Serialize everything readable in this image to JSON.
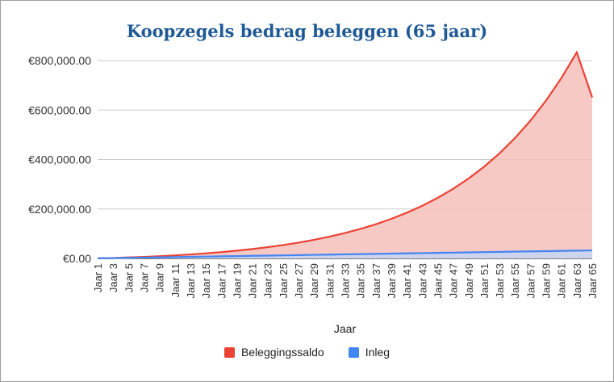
{
  "chart_data": {
    "type": "area",
    "title": "Koopzegels bedrag beleggen (65 jaar)",
    "xlabel": "Jaar",
    "ylabel": "",
    "ylim": [
      0,
      800000
    ],
    "yticks": [
      "€0.00",
      "€200,000.00",
      "€400,000.00",
      "€600,000.00",
      "€800,000.00"
    ],
    "ytick_values": [
      0,
      200000,
      400000,
      600000,
      800000
    ],
    "x_labels": [
      "Jaar 1",
      "Jaar 3",
      "Jaar 5",
      "Jaar 7",
      "Jaar 9",
      "Jaar 11",
      "Jaar 13",
      "Jaar 15",
      "Jaar 17",
      "Jaar 19",
      "Jaar 21",
      "Jaar 23",
      "Jaar 25",
      "Jaar 27",
      "Jaar 29",
      "Jaar 31",
      "Jaar 33",
      "Jaar 35",
      "Jaar 37",
      "Jaar 39",
      "Jaar 41",
      "Jaar 43",
      "Jaar 45",
      "Jaar 47",
      "Jaar 49",
      "Jaar 51",
      "Jaar 53",
      "Jaar 55",
      "Jaar 57",
      "Jaar 59",
      "Jaar 61",
      "Jaar 63",
      "Jaar 65"
    ],
    "x": [
      1,
      3,
      5,
      7,
      9,
      11,
      13,
      15,
      17,
      19,
      21,
      23,
      25,
      27,
      29,
      31,
      33,
      35,
      37,
      39,
      41,
      43,
      45,
      47,
      49,
      51,
      53,
      55,
      57,
      59,
      61,
      63,
      65
    ],
    "grid": true,
    "legend_position": "bottom",
    "series": [
      {
        "name": "Beleggingssaldo",
        "color": "#ea4335",
        "fill": "#f6c0bb",
        "values": [
          500,
          1900,
          4000,
          6400,
          9200,
          12400,
          16200,
          20600,
          25600,
          31400,
          37900,
          45500,
          54100,
          64000,
          75200,
          88000,
          102600,
          119300,
          138300,
          160000,
          184700,
          212800,
          244900,
          281400,
          323100,
          370600,
          424800,
          486600,
          557000,
          637200,
          728700,
          833000,
          651000
        ]
      },
      {
        "name": "Inleg",
        "color": "#4285f4",
        "fill": "#c5d6f5",
        "values": [
          500,
          1500,
          2500,
          3500,
          4500,
          5500,
          6500,
          7500,
          8500,
          9500,
          10500,
          11500,
          12500,
          13500,
          14500,
          15500,
          16500,
          17500,
          18500,
          19500,
          20500,
          21500,
          22500,
          23500,
          24500,
          25500,
          26500,
          27500,
          28500,
          29500,
          30500,
          31500,
          32500
        ]
      }
    ]
  }
}
